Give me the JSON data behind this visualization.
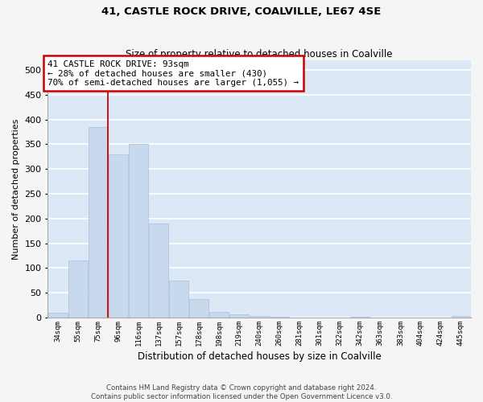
{
  "title1": "41, CASTLE ROCK DRIVE, COALVILLE, LE67 4SE",
  "title2": "Size of property relative to detached houses in Coalville",
  "xlabel": "Distribution of detached houses by size in Coalville",
  "ylabel": "Number of detached properties",
  "footer1": "Contains HM Land Registry data © Crown copyright and database right 2024.",
  "footer2": "Contains public sector information licensed under the Open Government Licence v3.0.",
  "categories": [
    "34sqm",
    "55sqm",
    "75sqm",
    "96sqm",
    "116sqm",
    "137sqm",
    "157sqm",
    "178sqm",
    "198sqm",
    "219sqm",
    "240sqm",
    "260sqm",
    "281sqm",
    "301sqm",
    "322sqm",
    "342sqm",
    "363sqm",
    "383sqm",
    "404sqm",
    "424sqm",
    "445sqm"
  ],
  "values": [
    10,
    115,
    385,
    330,
    350,
    190,
    75,
    38,
    12,
    6,
    4,
    2,
    0,
    0,
    0,
    2,
    0,
    0,
    0,
    0,
    4
  ],
  "bar_color": "#c8d9ee",
  "bar_edge_color": "#a8c0de",
  "background_color": "#dce8f5",
  "grid_color": "#ffffff",
  "property_line_x": 2.5,
  "property_line_color": "#cc0000",
  "annotation_text": "41 CASTLE ROCK DRIVE: 93sqm\n← 28% of detached houses are smaller (430)\n70% of semi-detached houses are larger (1,055) →",
  "annotation_box_color": "#ffffff",
  "annotation_box_edge_color": "#cc0000",
  "ylim": [
    0,
    520
  ],
  "yticks": [
    0,
    50,
    100,
    150,
    200,
    250,
    300,
    350,
    400,
    450,
    500
  ],
  "fig_bg": "#f5f5f5"
}
